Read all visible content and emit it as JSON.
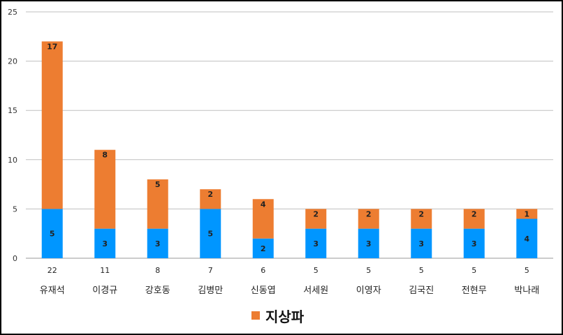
{
  "chart_data": {
    "type": "bar",
    "stacked": true,
    "categories": [
      "유재석",
      "이경규",
      "강호동",
      "김병만",
      "신동엽",
      "서세원",
      "이영자",
      "김국진",
      "전현무",
      "박나래"
    ],
    "totals": [
      "22",
      "11",
      "8",
      "7",
      "6",
      "5",
      "5",
      "5",
      "5",
      "5"
    ],
    "series": [
      {
        "values": [
          5,
          3,
          3,
          5,
          2,
          3,
          3,
          3,
          3,
          4
        ],
        "color": "#0096FF"
      },
      {
        "name": "지상파",
        "values": [
          17,
          8,
          5,
          2,
          4,
          2,
          2,
          2,
          2,
          1
        ],
        "color": "#ED7D31"
      }
    ],
    "ylim": [
      0,
      25
    ],
    "yticks": [
      0,
      5,
      10,
      15,
      20,
      25
    ],
    "grid": true,
    "legend_position": "bottom"
  }
}
